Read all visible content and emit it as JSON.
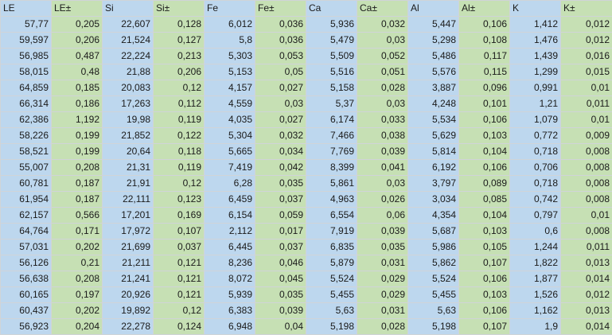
{
  "colors": {
    "blue": "#bdd7ee",
    "green": "#c6e0b4"
  },
  "headers": [
    "LE",
    "LE±",
    "Si",
    "Si±",
    "Fe",
    "Fe±",
    "Ca",
    "Ca±",
    "Al",
    "Al±",
    "K",
    "K±"
  ],
  "rows": [
    [
      "57,77",
      "0,205",
      "22,607",
      "0,128",
      "6,012",
      "0,036",
      "5,936",
      "0,032",
      "5,447",
      "0,106",
      "1,412",
      "0,012"
    ],
    [
      "59,597",
      "0,206",
      "21,524",
      "0,127",
      "5,8",
      "0,036",
      "5,479",
      "0,03",
      "5,298",
      "0,108",
      "1,476",
      "0,012"
    ],
    [
      "56,985",
      "0,487",
      "22,224",
      "0,213",
      "5,303",
      "0,053",
      "5,509",
      "0,052",
      "5,486",
      "0,117",
      "1,439",
      "0,016"
    ],
    [
      "58,015",
      "0,48",
      "21,88",
      "0,206",
      "5,153",
      "0,05",
      "5,516",
      "0,051",
      "5,576",
      "0,115",
      "1,299",
      "0,015"
    ],
    [
      "64,859",
      "0,185",
      "20,083",
      "0,12",
      "4,157",
      "0,027",
      "5,158",
      "0,028",
      "3,887",
      "0,096",
      "0,991",
      "0,01"
    ],
    [
      "66,314",
      "0,186",
      "17,263",
      "0,112",
      "4,559",
      "0,03",
      "5,37",
      "0,03",
      "4,248",
      "0,101",
      "1,21",
      "0,011"
    ],
    [
      "62,386",
      "1,192",
      "19,98",
      "0,119",
      "4,035",
      "0,027",
      "6,174",
      "0,033",
      "5,534",
      "0,106",
      "1,079",
      "0,01"
    ],
    [
      "58,226",
      "0,199",
      "21,852",
      "0,122",
      "5,304",
      "0,032",
      "7,466",
      "0,038",
      "5,629",
      "0,103",
      "0,772",
      "0,009"
    ],
    [
      "58,521",
      "0,199",
      "20,64",
      "0,118",
      "5,665",
      "0,034",
      "7,769",
      "0,039",
      "5,814",
      "0,104",
      "0,718",
      "0,008"
    ],
    [
      "55,007",
      "0,208",
      "21,31",
      "0,119",
      "7,419",
      "0,042",
      "8,399",
      "0,041",
      "6,192",
      "0,106",
      "0,706",
      "0,008"
    ],
    [
      "60,781",
      "0,187",
      "21,91",
      "0,12",
      "6,28",
      "0,035",
      "5,861",
      "0,03",
      "3,797",
      "0,089",
      "0,718",
      "0,008"
    ],
    [
      "61,954",
      "0,187",
      "22,111",
      "0,123",
      "6,459",
      "0,037",
      "4,963",
      "0,026",
      "3,034",
      "0,085",
      "0,742",
      "0,008"
    ],
    [
      "62,157",
      "0,566",
      "17,201",
      "0,169",
      "6,154",
      "0,059",
      "6,554",
      "0,06",
      "4,354",
      "0,104",
      "0,797",
      "0,01"
    ],
    [
      "64,764",
      "0,171",
      "17,972",
      "0,107",
      "2,112",
      "0,017",
      "7,919",
      "0,039",
      "5,687",
      "0,103",
      "0,6",
      "0,008"
    ],
    [
      "57,031",
      "0,202",
      "21,699",
      "0,037",
      "6,445",
      "0,037",
      "6,835",
      "0,035",
      "5,986",
      "0,105",
      "1,244",
      "0,011"
    ],
    [
      "56,126",
      "0,21",
      "21,211",
      "0,121",
      "8,236",
      "0,046",
      "5,879",
      "0,031",
      "5,862",
      "0,107",
      "1,822",
      "0,013"
    ],
    [
      "56,638",
      "0,208",
      "21,241",
      "0,121",
      "8,072",
      "0,045",
      "5,524",
      "0,029",
      "5,524",
      "0,106",
      "1,877",
      "0,014"
    ],
    [
      "60,165",
      "0,197",
      "20,926",
      "0,121",
      "5,939",
      "0,035",
      "5,455",
      "0,029",
      "5,455",
      "0,103",
      "1,526",
      "0,012"
    ],
    [
      "60,437",
      "0,202",
      "19,892",
      "0,12",
      "6,383",
      "0,039",
      "5,63",
      "0,031",
      "5,63",
      "0,106",
      "1,162",
      "0,013"
    ],
    [
      "56,923",
      "0,204",
      "22,278",
      "0,124",
      "6,948",
      "0,04",
      "5,198",
      "0,028",
      "5,198",
      "0,107",
      "1,9",
      "0,014"
    ]
  ]
}
